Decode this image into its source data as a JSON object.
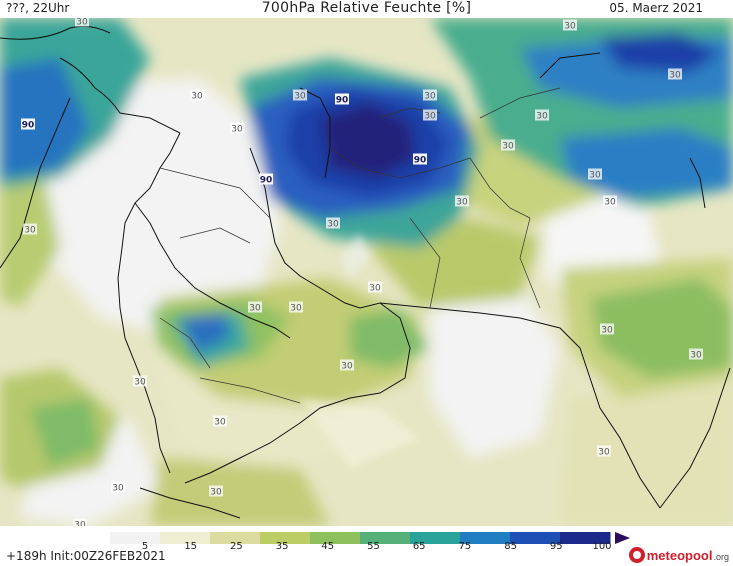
{
  "header": {
    "left": "???, 22Uhr",
    "title": "700hPa Relative Feuchte [%]",
    "date": "05. Maerz 2021"
  },
  "footer": {
    "run_info": "+189h  Init:00Z26FEB2021",
    "brand_name": "meteopool",
    "brand_tld": ".org"
  },
  "legend": {
    "ticks": [
      "5",
      "15",
      "25",
      "35",
      "45",
      "55",
      "65",
      "75",
      "85",
      "95",
      "100"
    ],
    "colors": [
      "#f2f2f2",
      "#eeeed2",
      "#dcdca0",
      "#bccd66",
      "#8dc05c",
      "#55b07a",
      "#29a39a",
      "#1f7ec2",
      "#1d4fb4",
      "#1d2a8c",
      "#2a0f60"
    ]
  },
  "contour_labels": [
    "30",
    "30",
    "30",
    "30",
    "30",
    "30",
    "30",
    "30",
    "30",
    "30",
    "30",
    "30",
    "30",
    "30",
    "30",
    "30",
    "30",
    "30",
    "30",
    "30",
    "30",
    "30",
    "30",
    "30",
    "30",
    "30",
    "30",
    "90",
    "90",
    "90",
    "90"
  ]
}
